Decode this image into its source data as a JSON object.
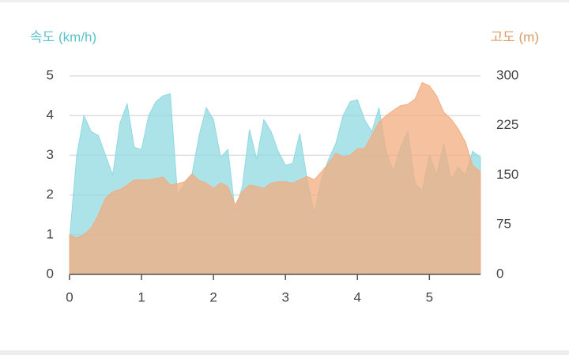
{
  "chart_data": {
    "type": "area",
    "ylabel": "속도 (km/h)",
    "y2label": "고도 (m)",
    "x": [
      0,
      0.1,
      0.2,
      0.3,
      0.4,
      0.5,
      0.6,
      0.7,
      0.8,
      0.9,
      1.0,
      1.1,
      1.2,
      1.3,
      1.4,
      1.5,
      1.6,
      1.7,
      1.8,
      1.9,
      2.0,
      2.1,
      2.2,
      2.3,
      2.4,
      2.5,
      2.6,
      2.7,
      2.8,
      2.9,
      3.0,
      3.1,
      3.2,
      3.3,
      3.4,
      3.5,
      3.6,
      3.7,
      3.8,
      3.9,
      4.0,
      4.1,
      4.2,
      4.3,
      4.4,
      4.5,
      4.6,
      4.7,
      4.8,
      4.9,
      5.0,
      5.1,
      5.2,
      5.3,
      5.4,
      5.5,
      5.6,
      5.71
    ],
    "series": [
      {
        "color": "#8fd9e2",
        "axis": "y",
        "values": [
          0.9,
          3.0,
          4.0,
          3.6,
          3.5,
          3.0,
          2.5,
          3.8,
          4.3,
          3.2,
          3.15,
          4.0,
          4.35,
          4.5,
          4.55,
          2.0,
          2.3,
          2.5,
          3.5,
          4.2,
          3.9,
          2.95,
          3.15,
          1.6,
          2.2,
          3.65,
          2.9,
          3.9,
          3.6,
          3.1,
          2.75,
          2.8,
          3.55,
          2.4,
          1.55,
          2.4,
          2.9,
          3.3,
          4.0,
          4.35,
          4.4,
          3.9,
          3.6,
          4.2,
          3.1,
          2.6,
          3.2,
          3.6,
          2.3,
          2.1,
          3.0,
          2.5,
          3.3,
          2.4,
          2.7,
          2.5,
          3.1,
          2.95
        ]
      },
      {
        "color": "#f3ac7f",
        "axis": "y2",
        "values": [
          60,
          55,
          60,
          70,
          90,
          115,
          125,
          128,
          135,
          143,
          143,
          143,
          145,
          147,
          135,
          137,
          140,
          152,
          142,
          138,
          130,
          138,
          133,
          105,
          125,
          135,
          133,
          130,
          138,
          140,
          140,
          138,
          143,
          148,
          143,
          155,
          168,
          183,
          178,
          180,
          190,
          190,
          210,
          230,
          240,
          248,
          255,
          257,
          265,
          290,
          285,
          270,
          245,
          235,
          220,
          200,
          165,
          155
        ]
      }
    ],
    "xlim": [
      0,
      5.71
    ],
    "xticks": [
      0,
      1,
      2,
      3,
      4,
      5
    ],
    "ylim": [
      0,
      5
    ],
    "yticks": [
      0,
      1,
      2,
      3,
      4,
      5
    ],
    "y2lim": [
      0,
      300
    ],
    "y2ticks": [
      0,
      75,
      150,
      225,
      300
    ],
    "grid": true,
    "ylabel_color": "#5cc1cb",
    "y2label_color": "#d99a66"
  }
}
